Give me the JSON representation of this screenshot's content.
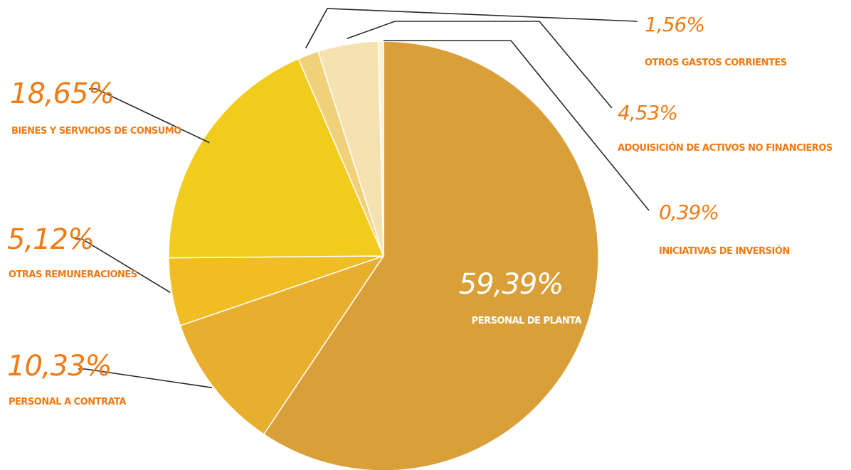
{
  "chart_data": {
    "type": "pie",
    "slices": [
      {
        "label": "PERSONAL DE PLANTA",
        "value": 59.39,
        "value_text": "59,39%",
        "color": "#D9A03A"
      },
      {
        "label": "PERSONAL A CONTRATA",
        "value": 10.33,
        "value_text": "10,33%",
        "color": "#E8AE2E"
      },
      {
        "label": "OTRAS REMUNERACIONES",
        "value": 5.12,
        "value_text": "5,12%",
        "color": "#F0BE22"
      },
      {
        "label": "BIENES Y SERVICIOS DE CONSUMO",
        "value": 18.65,
        "value_text": "18,65%",
        "color": "#F2CC1C"
      },
      {
        "label": "OTROS GASTOS CORRIENTES",
        "value": 1.56,
        "value_text": "1,56%",
        "color": "#F1D07A"
      },
      {
        "label": "ADQUISICIÓN DE ACTIVOS NO FINANCIEROS",
        "value": 4.53,
        "value_text": "4,53%",
        "color": "#F6E2B0"
      },
      {
        "label": "INICIATIVAS DE INVERSIÓN",
        "value": 0.39,
        "value_text": "0,39%",
        "color": "#FAF1D6"
      }
    ],
    "label_color": "#F07A14",
    "inner_label_color": "#FFFFFF",
    "line_color": "#2A2A2A"
  }
}
